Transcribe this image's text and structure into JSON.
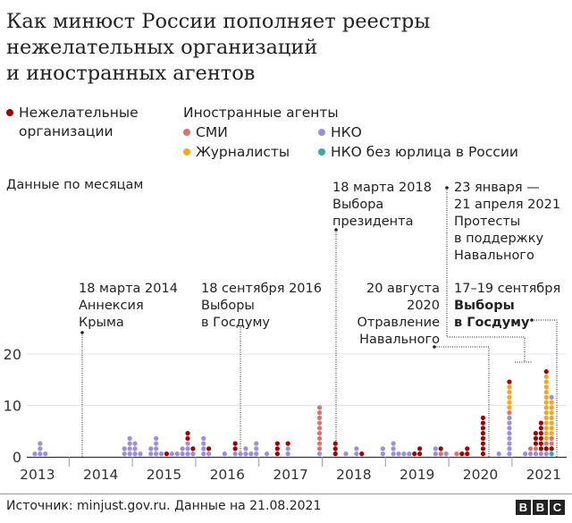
{
  "title": [
    "Как минюст России пополняет реестры",
    "нежелательных организаций",
    "и иностранных агентов"
  ],
  "legend": {
    "unwanted": [
      "Нежелательные",
      "организации"
    ],
    "foreign_agents_heading": "Иностранные агенты",
    "media": "СМИ",
    "nko": "НКО",
    "journalists": "Журналисты",
    "nko_no_entity": "НКО без юрлица в России"
  },
  "colors": {
    "unwanted": "#990000",
    "media": "#d9736f",
    "nko": "#9d8fd8",
    "journalists": "#f5a623",
    "nko_no_entity": "#3ba7ad"
  },
  "subtitle": "Данные по месяцам",
  "annotations": [
    {
      "id": "crimea",
      "lines": [
        "18 марта 2014",
        "Аннексия",
        "Крыма"
      ],
      "bold": []
    },
    {
      "id": "duma2016",
      "lines": [
        "18 сентября 2016",
        "Выборы",
        "в Госдуму"
      ],
      "bold": []
    },
    {
      "id": "pres2018",
      "lines": [
        "18 марта 2018",
        "Выбора",
        "президента"
      ],
      "bold": []
    },
    {
      "id": "navalny2020",
      "lines": [
        "20 августа",
        "2020",
        "Отравление",
        "Навального"
      ],
      "bold": []
    },
    {
      "id": "protests2021",
      "lines": [
        "23 января —",
        "21 апреля 2021",
        "Протесты",
        "в поддержку",
        "Навального"
      ],
      "bold": []
    },
    {
      "id": "duma2021",
      "lines": [
        "17–19 сентября",
        "Выборы",
        "в Госдуму"
      ],
      "bold": [
        1,
        2
      ]
    }
  ],
  "chart_data": {
    "type": "dot-stack",
    "xlabel": "",
    "ylabel": "",
    "ylim": [
      0,
      20
    ],
    "yticks": [
      "0",
      "10",
      "20"
    ],
    "xticks": [
      "2013",
      "2014",
      "2015",
      "2016",
      "2017",
      "2018",
      "2019",
      "2020",
      "2021"
    ],
    "grid": true,
    "series_names": {
      "unwanted": "Нежелательные организации",
      "media": "СМИ",
      "nko": "НКО",
      "journalists": "Журналисты",
      "nko_no_entity": "НКО без юрлица в России"
    },
    "months": [
      {
        "month": "2013-06",
        "stack": [
          [
            "nko",
            1
          ]
        ]
      },
      {
        "month": "2013-07",
        "stack": [
          [
            "nko",
            3
          ]
        ]
      },
      {
        "month": "2013-08",
        "stack": [
          [
            "nko",
            1
          ]
        ]
      },
      {
        "month": "2014-11",
        "stack": [
          [
            "nko",
            2
          ]
        ]
      },
      {
        "month": "2014-12",
        "stack": [
          [
            "nko",
            4
          ]
        ]
      },
      {
        "month": "2015-01",
        "stack": [
          [
            "nko",
            3
          ]
        ]
      },
      {
        "month": "2015-02",
        "stack": [
          [
            "nko",
            1
          ]
        ]
      },
      {
        "month": "2015-04",
        "stack": [
          [
            "nko",
            2
          ]
        ]
      },
      {
        "month": "2015-05",
        "stack": [
          [
            "nko",
            4
          ]
        ]
      },
      {
        "month": "2015-06",
        "stack": [
          [
            "nko",
            1
          ]
        ]
      },
      {
        "month": "2015-07",
        "stack": [
          [
            "unwanted",
            1
          ]
        ]
      },
      {
        "month": "2015-08",
        "stack": [
          [
            "nko",
            1
          ]
        ]
      },
      {
        "month": "2015-09",
        "stack": [
          [
            "nko",
            1
          ]
        ]
      },
      {
        "month": "2015-10",
        "stack": [
          [
            "nko",
            2
          ]
        ]
      },
      {
        "month": "2015-11",
        "stack": [
          [
            "nko",
            3
          ],
          [
            "unwanted",
            2
          ]
        ]
      },
      {
        "month": "2015-12",
        "stack": [
          [
            "nko",
            1
          ],
          [
            "unwanted",
            1
          ]
        ]
      },
      {
        "month": "2016-02",
        "stack": [
          [
            "nko",
            4
          ]
        ]
      },
      {
        "month": "2016-03",
        "stack": [
          [
            "nko",
            1
          ],
          [
            "unwanted",
            1
          ]
        ]
      },
      {
        "month": "2016-06",
        "stack": [
          [
            "nko",
            1
          ]
        ]
      },
      {
        "month": "2016-08",
        "stack": [
          [
            "nko",
            1
          ],
          [
            "unwanted",
            2
          ]
        ]
      },
      {
        "month": "2016-09",
        "stack": [
          [
            "nko",
            1
          ]
        ]
      },
      {
        "month": "2016-10",
        "stack": [
          [
            "nko",
            2
          ]
        ]
      },
      {
        "month": "2016-11",
        "stack": [
          [
            "nko",
            1
          ]
        ]
      },
      {
        "month": "2016-12",
        "stack": [
          [
            "nko",
            3
          ]
        ]
      },
      {
        "month": "2017-02",
        "stack": [
          [
            "nko",
            1
          ]
        ]
      },
      {
        "month": "2017-04",
        "stack": [
          [
            "unwanted",
            3
          ]
        ]
      },
      {
        "month": "2017-06",
        "stack": [
          [
            "nko",
            2
          ],
          [
            "unwanted",
            1
          ]
        ]
      },
      {
        "month": "2017-12",
        "stack": [
          [
            "nko",
            1
          ],
          [
            "media",
            9
          ]
        ]
      },
      {
        "month": "2018-03",
        "stack": [
          [
            "unwanted",
            3
          ]
        ]
      },
      {
        "month": "2018-05",
        "stack": [
          [
            "nko",
            1
          ]
        ]
      },
      {
        "month": "2018-07",
        "stack": [
          [
            "nko",
            2
          ]
        ]
      },
      {
        "month": "2018-08",
        "stack": [
          [
            "unwanted",
            1
          ]
        ]
      },
      {
        "month": "2018-12",
        "stack": [
          [
            "nko",
            2
          ]
        ]
      },
      {
        "month": "2019-02",
        "stack": [
          [
            "nko",
            3
          ]
        ]
      },
      {
        "month": "2019-03",
        "stack": [
          [
            "nko",
            1
          ]
        ]
      },
      {
        "month": "2019-04",
        "stack": [
          [
            "nko",
            1
          ]
        ]
      },
      {
        "month": "2019-05",
        "stack": [
          [
            "nko",
            1
          ]
        ]
      },
      {
        "month": "2019-06",
        "stack": [
          [
            "unwanted",
            1
          ]
        ]
      },
      {
        "month": "2019-07",
        "stack": [
          [
            "unwanted",
            2
          ]
        ]
      },
      {
        "month": "2019-10",
        "stack": [
          [
            "nko",
            2
          ]
        ]
      },
      {
        "month": "2019-11",
        "stack": [
          [
            "media",
            1
          ],
          [
            "unwanted",
            1
          ]
        ]
      },
      {
        "month": "2019-12",
        "stack": [
          [
            "nko",
            1
          ]
        ]
      },
      {
        "month": "2020-02",
        "stack": [
          [
            "media",
            1
          ]
        ]
      },
      {
        "month": "2020-03",
        "stack": [
          [
            "unwanted",
            1
          ]
        ]
      },
      {
        "month": "2020-04",
        "stack": [
          [
            "unwanted",
            2
          ]
        ]
      },
      {
        "month": "2020-07",
        "stack": [
          [
            "unwanted",
            8
          ]
        ]
      },
      {
        "month": "2020-10",
        "stack": [
          [
            "nko",
            1
          ]
        ]
      },
      {
        "month": "2020-12",
        "stack": [
          [
            "nko",
            8
          ],
          [
            "media",
            1
          ],
          [
            "journalists",
            5
          ],
          [
            "unwanted",
            1
          ]
        ]
      },
      {
        "month": "2021-03",
        "stack": [
          [
            "nko",
            1
          ]
        ]
      },
      {
        "month": "2021-04",
        "stack": [
          [
            "nko",
            1
          ],
          [
            "media",
            1
          ]
        ]
      },
      {
        "month": "2021-05",
        "stack": [
          [
            "nko",
            1
          ],
          [
            "media",
            1
          ],
          [
            "unwanted",
            3
          ]
        ]
      },
      {
        "month": "2021-06",
        "stack": [
          [
            "nko",
            1
          ],
          [
            "unwanted",
            6
          ]
        ]
      },
      {
        "month": "2021-07",
        "stack": [
          [
            "nko",
            1
          ],
          [
            "unwanted",
            1
          ],
          [
            "media",
            1
          ],
          [
            "journalists",
            13
          ],
          [
            "unwanted",
            1
          ]
        ]
      },
      {
        "month": "2021-08",
        "stack": [
          [
            "nko_no_entity",
            1
          ],
          [
            "unwanted",
            1
          ],
          [
            "media",
            2
          ],
          [
            "journalists",
            7
          ],
          [
            "nko",
            1
          ]
        ]
      }
    ]
  },
  "footer": {
    "source": "Источник: minjust.gov.ru. Данные на 21.08.2021",
    "logo": [
      "B",
      "B",
      "C"
    ]
  }
}
